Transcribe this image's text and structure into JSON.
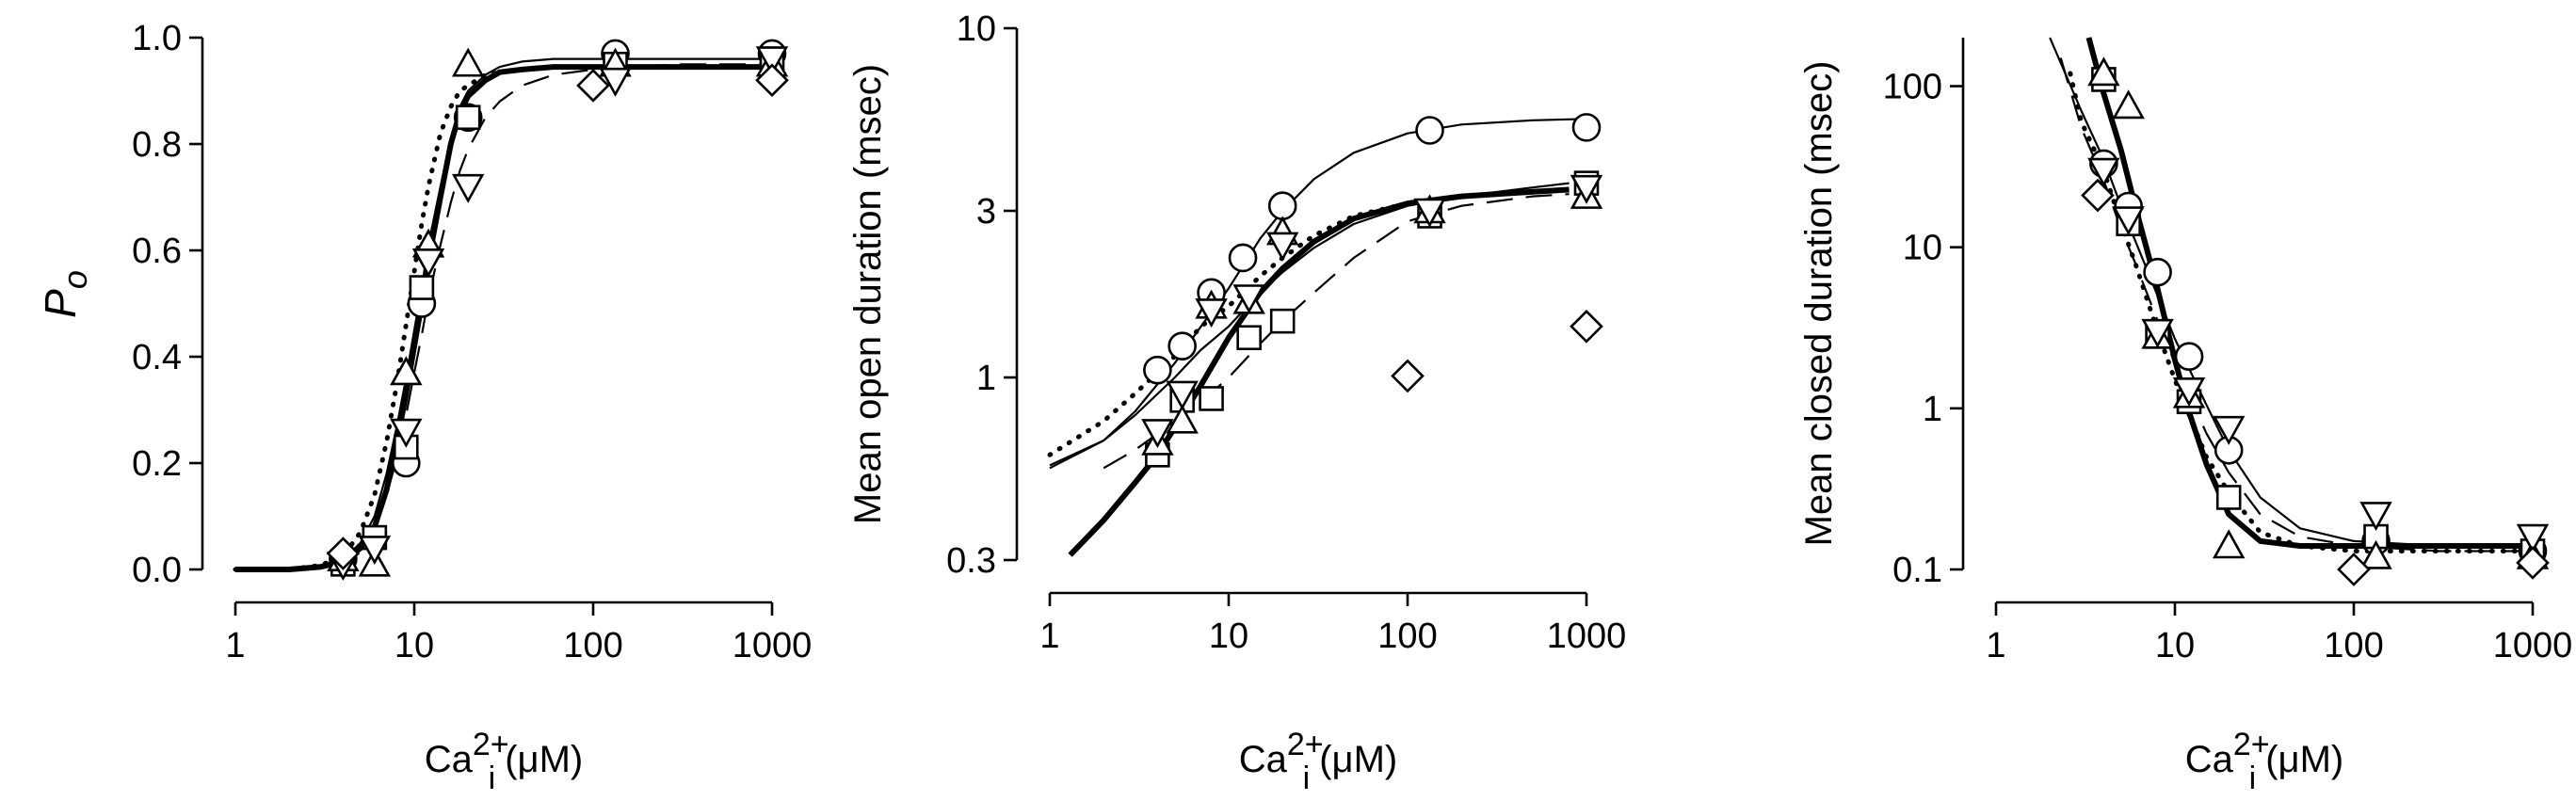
{
  "chart_data": [
    {
      "type": "scatter",
      "title": "",
      "xlabel": "Ca2+i (μM)",
      "xlabel_parts": {
        "base": "Ca",
        "sup": "2+",
        "sub": "i",
        "unit": "(μM)"
      },
      "ylabel": "Po",
      "ylabel_parts": {
        "base": "P",
        "sub": "o"
      },
      "x_scale": "log",
      "y_scale": "linear",
      "xlim": [
        1,
        1000
      ],
      "ylim": [
        0,
        1.0
      ],
      "xticks": [
        1,
        10,
        100,
        1000
      ],
      "xtick_labels": [
        "1",
        "10",
        "100",
        "1000"
      ],
      "yticks": [
        0,
        0.2,
        0.4,
        0.6,
        0.8,
        1.0
      ],
      "ytick_labels": [
        "0.0",
        "0.2",
        "0.4",
        "0.6",
        "0.8",
        "1.0"
      ],
      "grid": false,
      "series": [
        {
          "marker": "circle",
          "x": [
            4,
            9,
            11,
            20,
            133,
            1000
          ],
          "y": [
            0.02,
            0.2,
            0.5,
            0.85,
            0.97,
            0.97
          ]
        },
        {
          "marker": "square",
          "x": [
            4,
            6,
            9,
            11,
            20,
            133,
            1000
          ],
          "y": [
            0.01,
            0.06,
            0.23,
            0.53,
            0.85,
            0.95,
            0.96
          ]
        },
        {
          "marker": "triangle-up",
          "x": [
            4,
            6,
            9,
            12,
            20,
            133,
            1000
          ],
          "y": [
            0.02,
            0.01,
            0.37,
            0.61,
            0.95,
            0.95,
            0.95
          ]
        },
        {
          "marker": "triangle-down",
          "x": [
            4,
            6,
            9,
            12,
            20,
            133,
            1000
          ],
          "y": [
            0.01,
            0.04,
            0.26,
            0.58,
            0.72,
            0.92,
            0.96
          ]
        },
        {
          "marker": "diamond",
          "x": [
            4,
            100,
            1000
          ],
          "y": [
            0.03,
            0.91,
            0.92
          ]
        }
      ],
      "fits": [
        {
          "style": "thick",
          "x": [
            1,
            2,
            3,
            4,
            5,
            6,
            7,
            8,
            9,
            10,
            11,
            12,
            14,
            16,
            18,
            20,
            25,
            30,
            40,
            60,
            100,
            300,
            1000
          ],
          "y": [
            0.0,
            0.0,
            0.005,
            0.015,
            0.04,
            0.08,
            0.15,
            0.24,
            0.33,
            0.42,
            0.5,
            0.58,
            0.7,
            0.8,
            0.86,
            0.89,
            0.92,
            0.935,
            0.94,
            0.945,
            0.945,
            0.945,
            0.945
          ]
        },
        {
          "style": "thin",
          "x": [
            1,
            2,
            3,
            4,
            5,
            6,
            7,
            8,
            9,
            10,
            11,
            12,
            14,
            16,
            18,
            20,
            25,
            30,
            40,
            60,
            100,
            300,
            1000
          ],
          "y": [
            0.0,
            0.0,
            0.006,
            0.018,
            0.05,
            0.1,
            0.18,
            0.27,
            0.36,
            0.45,
            0.53,
            0.61,
            0.72,
            0.81,
            0.87,
            0.9,
            0.93,
            0.945,
            0.955,
            0.96,
            0.96,
            0.96,
            0.96
          ]
        },
        {
          "style": "dotted",
          "x": [
            1,
            2,
            3,
            4,
            5,
            6,
            7,
            8,
            9,
            10,
            11,
            12,
            14,
            16,
            18,
            20,
            25,
            30,
            40,
            60,
            100,
            300,
            1000
          ],
          "y": [
            0.0,
            0.0,
            0.008,
            0.025,
            0.07,
            0.14,
            0.24,
            0.35,
            0.46,
            0.56,
            0.65,
            0.72,
            0.82,
            0.87,
            0.9,
            0.91,
            0.93,
            0.935,
            0.94,
            0.945,
            0.945,
            0.945,
            0.945
          ]
        },
        {
          "style": "dashed",
          "x": [
            1,
            2,
            3,
            4,
            5,
            6,
            7,
            8,
            9,
            10,
            11,
            12,
            14,
            16,
            18,
            20,
            25,
            30,
            40,
            60,
            100,
            300,
            1000
          ],
          "y": [
            0.0,
            0.0,
            0.005,
            0.015,
            0.04,
            0.08,
            0.14,
            0.21,
            0.29,
            0.37,
            0.44,
            0.51,
            0.61,
            0.69,
            0.75,
            0.79,
            0.85,
            0.88,
            0.91,
            0.93,
            0.94,
            0.95,
            0.95
          ]
        }
      ]
    },
    {
      "type": "scatter",
      "title": "",
      "xlabel": "Ca2+i (μM)",
      "xlabel_parts": {
        "base": "Ca",
        "sup": "2+",
        "sub": "i",
        "unit": "(μM)"
      },
      "ylabel": "Mean open duration (msec)",
      "x_scale": "log",
      "y_scale": "log",
      "xlim": [
        1,
        1000
      ],
      "ylim": [
        0.3,
        10
      ],
      "xticks": [
        1,
        10,
        100,
        1000
      ],
      "xtick_labels": [
        "1",
        "10",
        "100",
        "1000"
      ],
      "yticks": [
        0.3,
        1,
        3,
        10
      ],
      "ytick_labels": [
        "0.3",
        "1",
        "3",
        "10"
      ],
      "grid": false,
      "series": [
        {
          "marker": "circle",
          "x": [
            4,
            5.5,
            8,
            12,
            20,
            133,
            1000
          ],
          "y": [
            1.05,
            1.23,
            1.75,
            2.2,
            3.1,
            5.1,
            5.2
          ]
        },
        {
          "marker": "square",
          "x": [
            4,
            5.5,
            8,
            13,
            20,
            133,
            1000
          ],
          "y": [
            0.6,
            0.86,
            0.87,
            1.3,
            1.45,
            2.9,
            3.6
          ]
        },
        {
          "marker": "triangle-up",
          "x": [
            4,
            5.5,
            8,
            13,
            20,
            133,
            1000
          ],
          "y": [
            0.65,
            0.75,
            1.6,
            1.65,
            2.6,
            3.0,
            3.3
          ]
        },
        {
          "marker": "triangle-down",
          "x": [
            4,
            5.5,
            8,
            13,
            20,
            133,
            1000
          ],
          "y": [
            0.7,
            0.9,
            1.55,
            1.7,
            2.4,
            3.0,
            3.5
          ]
        },
        {
          "marker": "diamond",
          "x": [
            100,
            1000
          ],
          "y": [
            1.01,
            1.4
          ]
        }
      ],
      "fits": [
        {
          "style": "thick",
          "x": [
            1.3,
            2,
            3,
            4,
            5,
            7,
            10,
            15,
            20,
            30,
            50,
            100,
            200,
            500,
            800
          ],
          "y": [
            0.31,
            0.39,
            0.5,
            0.6,
            0.72,
            0.95,
            1.3,
            1.75,
            2.05,
            2.45,
            2.85,
            3.15,
            3.3,
            3.4,
            3.45
          ]
        },
        {
          "style": "thin",
          "x": [
            1,
            2,
            3,
            5,
            7,
            10,
            15,
            20,
            30,
            50,
            100,
            200,
            500,
            1000
          ],
          "y": [
            0.55,
            0.66,
            0.8,
            1.1,
            1.4,
            1.8,
            2.5,
            3.0,
            3.7,
            4.4,
            5.0,
            5.3,
            5.45,
            5.5
          ]
        },
        {
          "style": "thin",
          "x": [
            1,
            2,
            3,
            5,
            7,
            10,
            15,
            20,
            30,
            50,
            100,
            200,
            500,
            800
          ],
          "y": [
            0.56,
            0.66,
            0.78,
            1.0,
            1.2,
            1.4,
            1.75,
            2.0,
            2.35,
            2.75,
            3.1,
            3.3,
            3.5,
            3.6
          ]
        },
        {
          "style": "dotted",
          "x": [
            1,
            2,
            3,
            5,
            7,
            10,
            15,
            20,
            30,
            50,
            100,
            200,
            500,
            800
          ],
          "y": [
            0.6,
            0.75,
            0.9,
            1.15,
            1.4,
            1.6,
            1.95,
            2.2,
            2.55,
            2.9,
            3.15,
            3.3,
            3.4,
            3.45
          ]
        },
        {
          "style": "dashed",
          "x": [
            2,
            3,
            5,
            7,
            10,
            15,
            20,
            30,
            50,
            100,
            200,
            500,
            800
          ],
          "y": [
            0.55,
            0.62,
            0.75,
            0.85,
            1.0,
            1.25,
            1.45,
            1.75,
            2.2,
            2.8,
            3.1,
            3.3,
            3.35
          ]
        }
      ]
    },
    {
      "type": "scatter",
      "title": "",
      "xlabel": "Ca2+i (μM)",
      "xlabel_parts": {
        "base": "Ca",
        "sup": "2+",
        "sub": "i",
        "unit": "(μM)"
      },
      "ylabel": "Mean closed duration (msec)",
      "x_scale": "log",
      "y_scale": "log",
      "xlim": [
        1,
        1000
      ],
      "ylim": [
        0.1,
        200
      ],
      "xticks": [
        1,
        10,
        100,
        1000
      ],
      "xtick_labels": [
        "1",
        "10",
        "100",
        "1000"
      ],
      "yticks": [
        0.1,
        1,
        10,
        100
      ],
      "ytick_labels": [
        "0.1",
        "1",
        "10",
        "100"
      ],
      "grid": false,
      "series": [
        {
          "marker": "circle",
          "x": [
            4,
            5.5,
            8,
            12,
            20,
            133,
            1000
          ],
          "y": [
            33,
            18,
            7,
            2.1,
            0.55,
            0.15,
            0.13
          ]
        },
        {
          "marker": "square",
          "x": [
            4,
            5.5,
            8,
            12,
            20,
            133,
            1000
          ],
          "y": [
            110,
            14,
            2.8,
            1.1,
            0.28,
            0.16,
            0.13
          ]
        },
        {
          "marker": "triangle-up",
          "x": [
            4,
            5.5,
            8,
            12,
            20,
            133,
            1000
          ],
          "y": [
            120,
            75,
            2.8,
            1.2,
            0.14,
            0.12,
            0.12
          ]
        },
        {
          "marker": "triangle-down",
          "x": [
            4,
            5.5,
            8,
            12,
            20,
            133,
            1000
          ],
          "y": [
            30,
            15,
            3.0,
            1.3,
            0.75,
            0.22,
            0.16
          ]
        },
        {
          "marker": "diamond",
          "x": [
            3.7,
            100,
            1000
          ],
          "y": [
            21,
            0.1,
            0.11
          ]
        }
      ],
      "fits": [
        {
          "style": "thick",
          "x": [
            3.3,
            4,
            5,
            6,
            8,
            10,
            12,
            15,
            20,
            30,
            50,
            100,
            300,
            1000
          ],
          "y": [
            200,
            90,
            40,
            18,
            5.5,
            2.0,
            0.95,
            0.45,
            0.22,
            0.15,
            0.14,
            0.14,
            0.14,
            0.14
          ]
        },
        {
          "style": "thin",
          "x": [
            2,
            3,
            4,
            5,
            6,
            8,
            10,
            15,
            20,
            30,
            50,
            100,
            300,
            1000
          ],
          "y": [
            200,
            70,
            35,
            18,
            11,
            5.0,
            2.7,
            1.05,
            0.55,
            0.28,
            0.18,
            0.15,
            0.14,
            0.14
          ]
        },
        {
          "style": "dotted",
          "x": [
            2.6,
            3,
            4,
            5,
            6,
            8,
            10,
            15,
            20,
            30,
            50,
            100,
            300,
            1000
          ],
          "y": [
            120,
            60,
            30,
            14,
            8,
            3.0,
            1.5,
            0.5,
            0.3,
            0.17,
            0.14,
            0.13,
            0.13,
            0.13
          ]
        },
        {
          "style": "dashed",
          "x": [
            2.3,
            3,
            4,
            5,
            6,
            8,
            10,
            15,
            20,
            30,
            50,
            100,
            300,
            1000
          ],
          "y": [
            150,
            55,
            26,
            13,
            8,
            3.5,
            1.9,
            0.7,
            0.4,
            0.22,
            0.16,
            0.14,
            0.13,
            0.13
          ]
        }
      ]
    }
  ]
}
